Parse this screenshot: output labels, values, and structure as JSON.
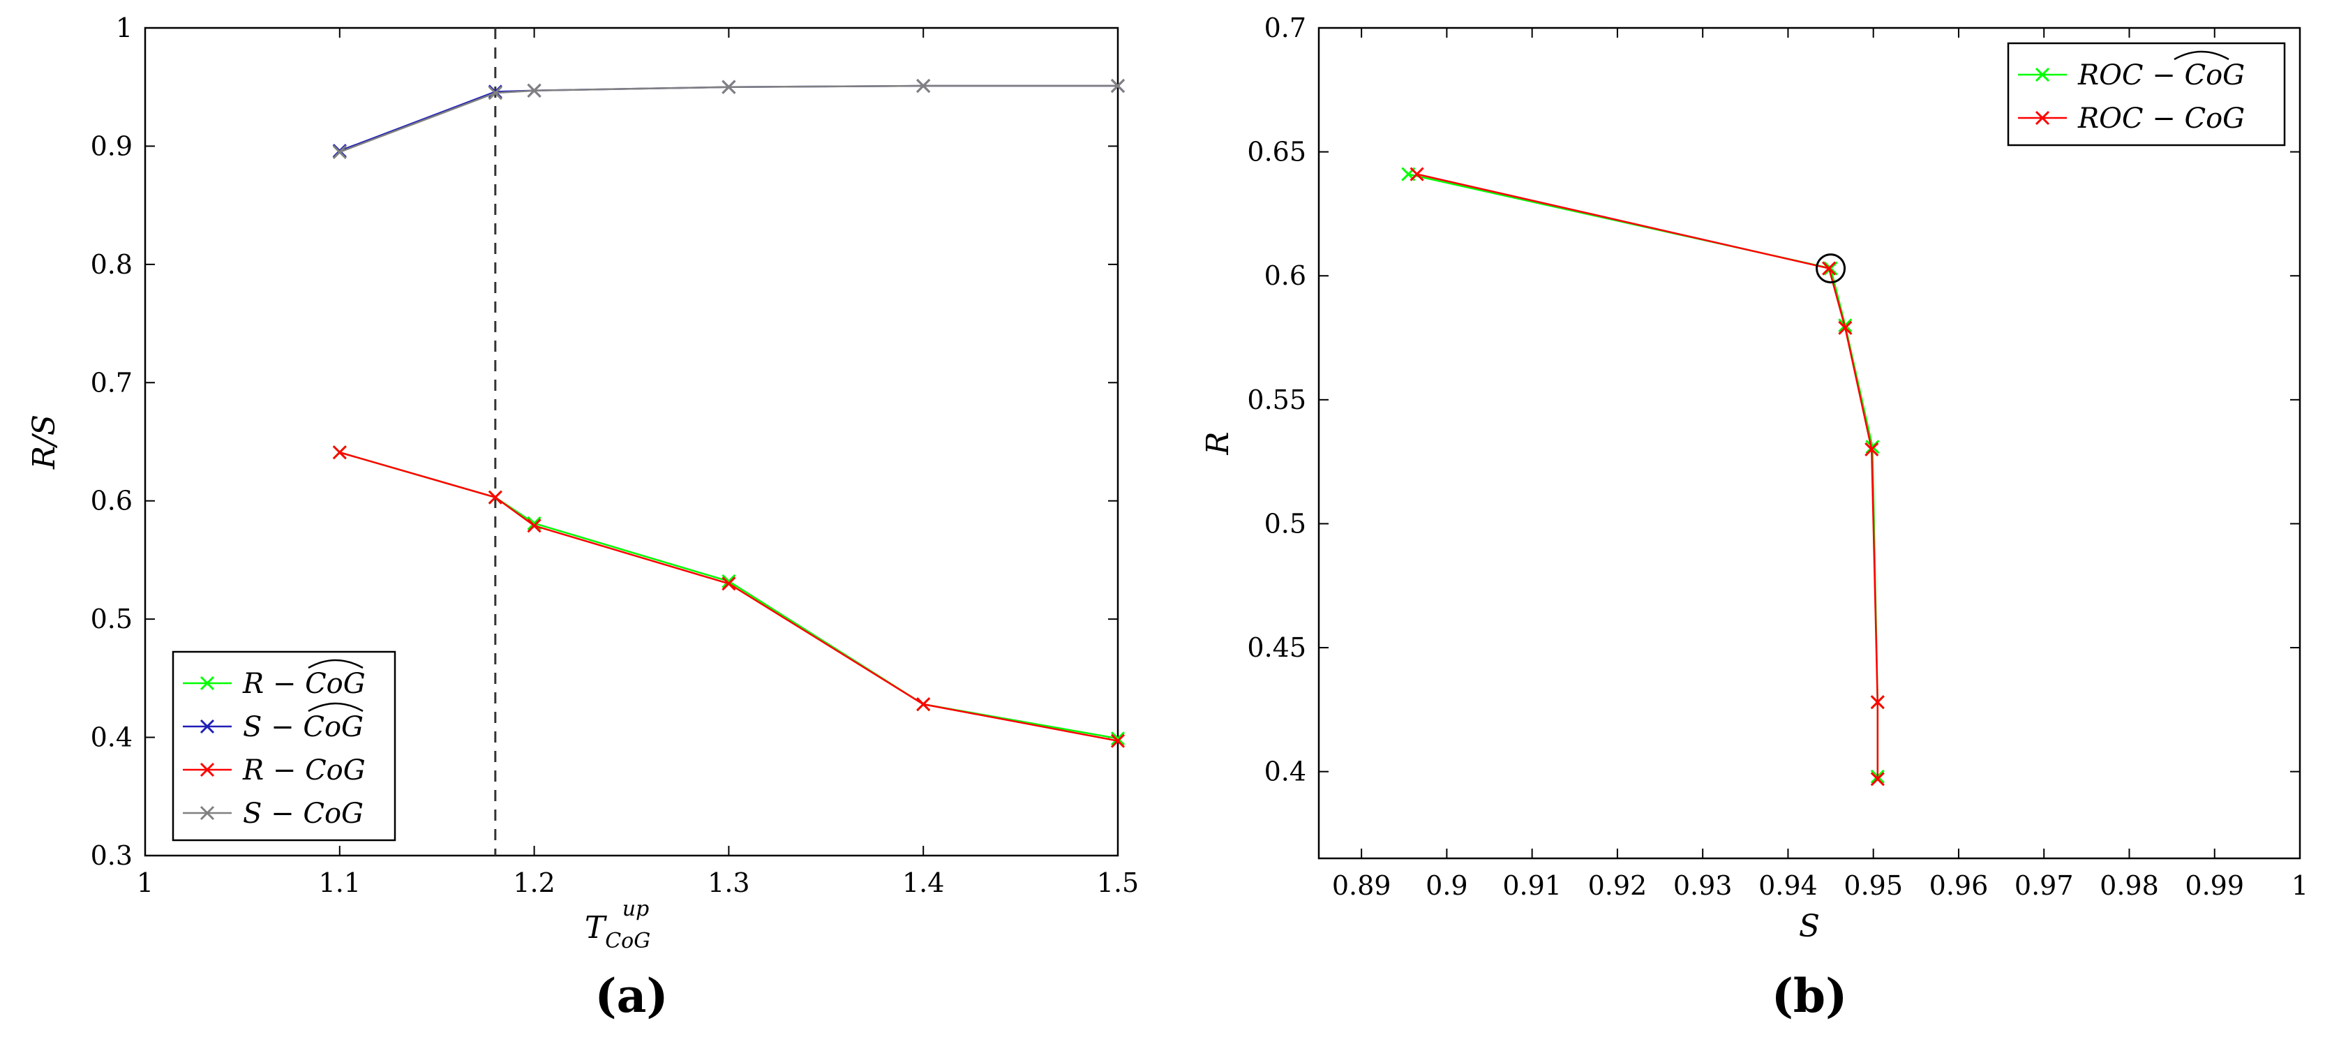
{
  "chart_data": [
    {
      "type": "line",
      "panel_label": "(a)",
      "xlabel": "T_CoG^up",
      "xlabel_main": "T",
      "xlabel_sub": "CoG",
      "xlabel_sup": "up",
      "ylabel": "R/S",
      "xlim": [
        1,
        1.5
      ],
      "ylim": [
        0.3,
        1
      ],
      "x_ticks": [
        "1",
        "1.1",
        "1.2",
        "1.3",
        "1.4",
        "1.5"
      ],
      "y_ticks": [
        "0.3",
        "0.4",
        "0.5",
        "0.6",
        "0.7",
        "0.8",
        "0.9",
        "1"
      ],
      "vline_x": 1.18,
      "legend_position": "bottom-left",
      "grid": false,
      "series": [
        {
          "name": "R − CoG^",
          "hat": true,
          "base": "R − ",
          "color": "#00ff00",
          "x": [
            1.1,
            1.18,
            1.2,
            1.3,
            1.4,
            1.5
          ],
          "y": [
            0.641,
            0.603,
            0.581,
            0.532,
            0.428,
            0.399
          ]
        },
        {
          "name": "S − CoG^",
          "hat": true,
          "base": "S − ",
          "color": "#1f1fb8",
          "x": [
            1.1,
            1.18,
            1.2,
            1.3,
            1.4,
            1.5
          ],
          "y": [
            0.896,
            0.946,
            0.947,
            0.95,
            0.951,
            0.951
          ]
        },
        {
          "name": "R − CoG",
          "hat": false,
          "base": "R − ",
          "color": "#ff0000",
          "x": [
            1.1,
            1.18,
            1.2,
            1.3,
            1.4,
            1.5
          ],
          "y": [
            0.641,
            0.603,
            0.579,
            0.53,
            0.428,
            0.397
          ]
        },
        {
          "name": "S − CoG",
          "hat": false,
          "base": "S − ",
          "color": "#808080",
          "x": [
            1.1,
            1.18,
            1.2,
            1.3,
            1.4,
            1.5
          ],
          "y": [
            0.895,
            0.945,
            0.947,
            0.95,
            0.951,
            0.951
          ]
        }
      ]
    },
    {
      "type": "line",
      "panel_label": "(b)",
      "xlabel": "S",
      "ylabel": "R",
      "xlim": [
        0.885,
        1
      ],
      "ylim": [
        0.365,
        0.7
      ],
      "x_ticks": [
        "0.89",
        "0.9",
        "0.91",
        "0.92",
        "0.93",
        "0.94",
        "0.95",
        "0.96",
        "0.97",
        "0.98",
        "0.99",
        "1"
      ],
      "y_ticks": [
        "0.4",
        "0.45",
        "0.5",
        "0.55",
        "0.6",
        "0.65",
        "0.7"
      ],
      "circled_point": [
        0.945,
        0.603
      ],
      "legend_position": "top-right",
      "grid": false,
      "series": [
        {
          "name": "ROC − CoG^",
          "hat": true,
          "base": "ROC − ",
          "color": "#00ff00",
          "x": [
            0.8955,
            0.945,
            0.9467,
            0.9499,
            0.9505,
            0.9505
          ],
          "y": [
            0.641,
            0.603,
            0.58,
            0.531,
            0.428,
            0.398
          ]
        },
        {
          "name": "ROC − CoG",
          "hat": false,
          "base": "ROC − ",
          "color": "#ff0000",
          "x": [
            0.8965,
            0.9448,
            0.9467,
            0.9498,
            0.9505,
            0.9505
          ],
          "y": [
            0.641,
            0.603,
            0.579,
            0.53,
            0.428,
            0.397
          ]
        }
      ]
    }
  ]
}
